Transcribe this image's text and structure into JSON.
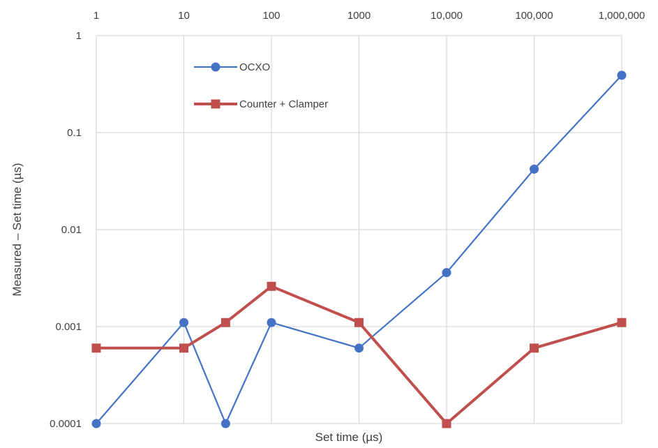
{
  "chart_data": {
    "type": "line",
    "title": "",
    "xlabel": "Set time (µs)",
    "ylabel": "Measured – Set time (µs)",
    "x_scale": "log",
    "y_scale": "log",
    "xlim": [
      1,
      1000000
    ],
    "ylim": [
      0.0001,
      1
    ],
    "grid": true,
    "legend_position": "top-left inside",
    "x_tick_labels": [
      {
        "value": 1,
        "label": "1"
      },
      {
        "value": 10,
        "label": "10"
      },
      {
        "value": 100,
        "label": "100"
      },
      {
        "value": 1000,
        "label": "1000"
      },
      {
        "value": 10000,
        "label": "10,000"
      },
      {
        "value": 100000,
        "label": "100,000"
      },
      {
        "value": 1000000,
        "label": "1,000,000"
      }
    ],
    "y_tick_labels": [
      {
        "value": 1,
        "label": "1"
      },
      {
        "value": 0.1,
        "label": "0.1"
      },
      {
        "value": 0.01,
        "label": "0.01"
      },
      {
        "value": 0.001,
        "label": "0.001"
      },
      {
        "value": 0.0001,
        "label": "0.0001"
      }
    ],
    "series": [
      {
        "name": "OCXO",
        "color": "#4472c4",
        "marker": "circle",
        "points": [
          {
            "x": 1,
            "y": 0.0001
          },
          {
            "x": 10,
            "y": 0.0011
          },
          {
            "x": 30,
            "y": 0.0001
          },
          {
            "x": 100,
            "y": 0.0011
          },
          {
            "x": 1000,
            "y": 0.0006
          },
          {
            "x": 10000,
            "y": 0.0036
          },
          {
            "x": 100000,
            "y": 0.042
          },
          {
            "x": 1000000,
            "y": 0.39
          }
        ]
      },
      {
        "name": "Counter + Clamper",
        "color": "#c0504d",
        "marker": "square",
        "points": [
          {
            "x": 1,
            "y": 0.0006
          },
          {
            "x": 10,
            "y": 0.0006
          },
          {
            "x": 30,
            "y": 0.0011
          },
          {
            "x": 100,
            "y": 0.0026
          },
          {
            "x": 1000,
            "y": 0.0011
          },
          {
            "x": 10000,
            "y": 0.0001
          },
          {
            "x": 100000,
            "y": 0.0006
          },
          {
            "x": 1000000,
            "y": 0.0011
          }
        ]
      }
    ]
  }
}
